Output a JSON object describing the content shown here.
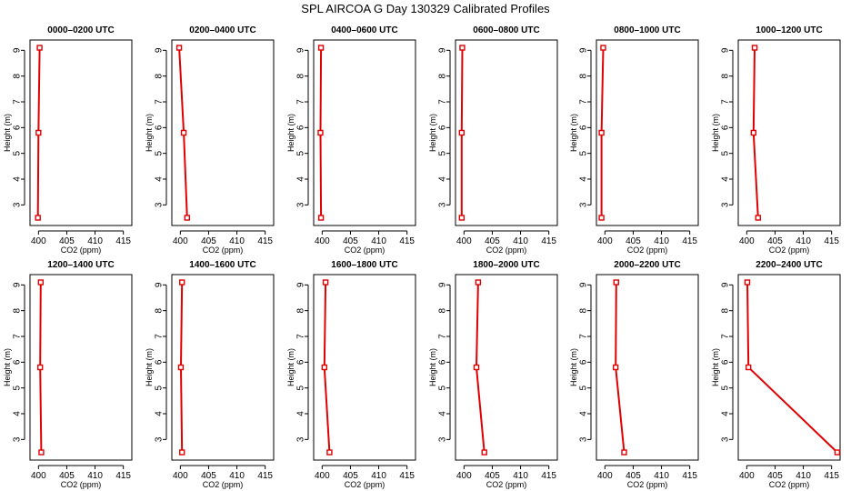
{
  "figure": {
    "title": "SPL AIRCOA G  Day 130329  Calibrated Profiles",
    "colors": {
      "series": "#e00000",
      "axis": "#000000",
      "background": "#ffffff"
    }
  },
  "chart_data": [
    {
      "type": "line",
      "title": "0000–0200 UTC",
      "xlabel": "CO2 (ppm)",
      "ylabel": "Height (m)",
      "xlim": [
        398.5,
        416.5
      ],
      "ylim": [
        2.2,
        9.4
      ],
      "xticks": [
        400,
        405,
        410,
        415
      ],
      "yticks": [
        3,
        4,
        5,
        6,
        7,
        8,
        9
      ],
      "points": [
        {
          "x": 400.2,
          "y": 9.1
        },
        {
          "x": 400.0,
          "y": 5.8
        },
        {
          "x": 399.9,
          "y": 2.5
        }
      ]
    },
    {
      "type": "line",
      "title": "0200–0400 UTC",
      "xlabel": "CO2 (ppm)",
      "ylabel": "Height (m)",
      "xlim": [
        398.5,
        416.5
      ],
      "ylim": [
        2.2,
        9.4
      ],
      "xticks": [
        400,
        405,
        410,
        415
      ],
      "yticks": [
        3,
        4,
        5,
        6,
        7,
        8,
        9
      ],
      "points": [
        {
          "x": 399.8,
          "y": 9.1
        },
        {
          "x": 400.6,
          "y": 5.8
        },
        {
          "x": 401.2,
          "y": 2.5
        }
      ]
    },
    {
      "type": "line",
      "title": "0400–0600 UTC",
      "xlabel": "CO2 (ppm)",
      "ylabel": "Height (m)",
      "xlim": [
        398.5,
        416.5
      ],
      "ylim": [
        2.2,
        9.4
      ],
      "xticks": [
        400,
        405,
        410,
        415
      ],
      "yticks": [
        3,
        4,
        5,
        6,
        7,
        8,
        9
      ],
      "points": [
        {
          "x": 399.8,
          "y": 9.1
        },
        {
          "x": 399.7,
          "y": 5.8
        },
        {
          "x": 399.8,
          "y": 2.5
        }
      ]
    },
    {
      "type": "line",
      "title": "0600–0800 UTC",
      "xlabel": "CO2 (ppm)",
      "ylabel": "Height (m)",
      "xlim": [
        398.5,
        416.5
      ],
      "ylim": [
        2.2,
        9.4
      ],
      "xticks": [
        400,
        405,
        410,
        415
      ],
      "yticks": [
        3,
        4,
        5,
        6,
        7,
        8,
        9
      ],
      "points": [
        {
          "x": 399.7,
          "y": 9.1
        },
        {
          "x": 399.6,
          "y": 5.8
        },
        {
          "x": 399.6,
          "y": 2.5
        }
      ]
    },
    {
      "type": "line",
      "title": "0800–1000 UTC",
      "xlabel": "CO2 (ppm)",
      "ylabel": "Height (m)",
      "xlim": [
        398.5,
        416.5
      ],
      "ylim": [
        2.2,
        9.4
      ],
      "xticks": [
        400,
        405,
        410,
        415
      ],
      "yticks": [
        3,
        4,
        5,
        6,
        7,
        8,
        9
      ],
      "points": [
        {
          "x": 399.7,
          "y": 9.1
        },
        {
          "x": 399.4,
          "y": 5.8
        },
        {
          "x": 399.4,
          "y": 2.5
        }
      ]
    },
    {
      "type": "line",
      "title": "1000–1200 UTC",
      "xlabel": "CO2 (ppm)",
      "ylabel": "Height (m)",
      "xlim": [
        398.5,
        416.5
      ],
      "ylim": [
        2.2,
        9.4
      ],
      "xticks": [
        400,
        405,
        410,
        415
      ],
      "yticks": [
        3,
        4,
        5,
        6,
        7,
        8,
        9
      ],
      "points": [
        {
          "x": 401.4,
          "y": 9.1
        },
        {
          "x": 401.2,
          "y": 5.8
        },
        {
          "x": 402.0,
          "y": 2.5
        }
      ]
    },
    {
      "type": "line",
      "title": "1200–1400 UTC",
      "xlabel": "CO2 (ppm)",
      "ylabel": "Height (m)",
      "xlim": [
        398.5,
        416.5
      ],
      "ylim": [
        2.2,
        9.4
      ],
      "xticks": [
        400,
        405,
        410,
        415
      ],
      "yticks": [
        3,
        4,
        5,
        6,
        7,
        8,
        9
      ],
      "points": [
        {
          "x": 400.4,
          "y": 9.1
        },
        {
          "x": 400.3,
          "y": 5.8
        },
        {
          "x": 400.5,
          "y": 2.5
        }
      ]
    },
    {
      "type": "line",
      "title": "1400–1600 UTC",
      "xlabel": "CO2 (ppm)",
      "ylabel": "Height (m)",
      "xlim": [
        398.5,
        416.5
      ],
      "ylim": [
        2.2,
        9.4
      ],
      "xticks": [
        400,
        405,
        410,
        415
      ],
      "yticks": [
        3,
        4,
        5,
        6,
        7,
        8,
        9
      ],
      "points": [
        {
          "x": 400.3,
          "y": 9.1
        },
        {
          "x": 400.1,
          "y": 5.8
        },
        {
          "x": 400.3,
          "y": 2.5
        }
      ]
    },
    {
      "type": "line",
      "title": "1600–1800 UTC",
      "xlabel": "CO2 (ppm)",
      "ylabel": "Height (m)",
      "xlim": [
        398.5,
        416.5
      ],
      "ylim": [
        2.2,
        9.4
      ],
      "xticks": [
        400,
        405,
        410,
        415
      ],
      "yticks": [
        3,
        4,
        5,
        6,
        7,
        8,
        9
      ],
      "points": [
        {
          "x": 400.6,
          "y": 9.1
        },
        {
          "x": 400.4,
          "y": 5.8
        },
        {
          "x": 401.3,
          "y": 2.5
        }
      ]
    },
    {
      "type": "line",
      "title": "1800–2000 UTC",
      "xlabel": "CO2 (ppm)",
      "ylabel": "Height (m)",
      "xlim": [
        398.5,
        416.5
      ],
      "ylim": [
        2.2,
        9.4
      ],
      "xticks": [
        400,
        405,
        410,
        415
      ],
      "yticks": [
        3,
        4,
        5,
        6,
        7,
        8,
        9
      ],
      "points": [
        {
          "x": 402.5,
          "y": 9.1
        },
        {
          "x": 402.2,
          "y": 5.8
        },
        {
          "x": 403.6,
          "y": 2.5
        }
      ]
    },
    {
      "type": "line",
      "title": "2000–2200 UTC",
      "xlabel": "CO2 (ppm)",
      "ylabel": "Height (m)",
      "xlim": [
        398.5,
        416.5
      ],
      "ylim": [
        2.2,
        9.4
      ],
      "xticks": [
        400,
        405,
        410,
        415
      ],
      "yticks": [
        3,
        4,
        5,
        6,
        7,
        8,
        9
      ],
      "points": [
        {
          "x": 402.0,
          "y": 9.1
        },
        {
          "x": 401.9,
          "y": 5.8
        },
        {
          "x": 403.4,
          "y": 2.5
        }
      ]
    },
    {
      "type": "line",
      "title": "2200–2400 UTC",
      "xlabel": "CO2 (ppm)",
      "ylabel": "Height (m)",
      "xlim": [
        398.5,
        416.5
      ],
      "ylim": [
        2.2,
        9.4
      ],
      "xticks": [
        400,
        405,
        410,
        415
      ],
      "yticks": [
        3,
        4,
        5,
        6,
        7,
        8,
        9
      ],
      "points": [
        {
          "x": 400.1,
          "y": 9.1
        },
        {
          "x": 400.3,
          "y": 5.8
        },
        {
          "x": 416.0,
          "y": 2.5
        }
      ]
    }
  ]
}
